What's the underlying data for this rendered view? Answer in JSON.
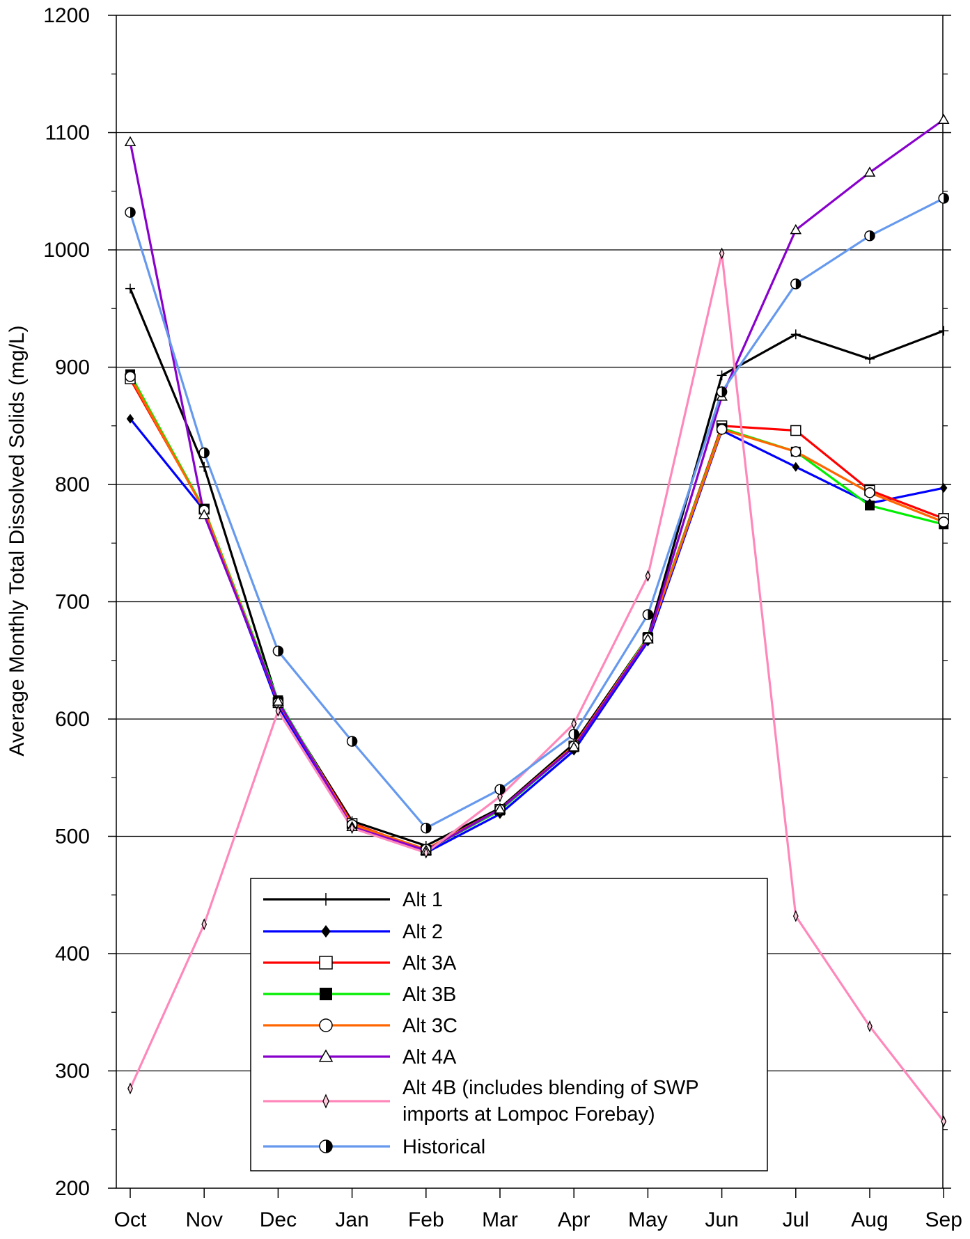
{
  "chart_data": {
    "type": "line",
    "title": "",
    "xlabel": "",
    "ylabel": "Average Monthly Total Dissolved Solids (mg/L)",
    "categories": [
      "Oct",
      "Nov",
      "Dec",
      "Jan",
      "Feb",
      "Mar",
      "Apr",
      "May",
      "Jun",
      "Jul",
      "Aug",
      "Sep"
    ],
    "ylim": [
      200,
      1200
    ],
    "yticks": [
      200,
      300,
      400,
      500,
      600,
      700,
      800,
      900,
      1000,
      1100,
      1200
    ],
    "grid": "horizontal major lines",
    "legend_position": "bottom-center",
    "series": [
      {
        "name": "Alt 1",
        "color": "#000000",
        "marker": "plus",
        "values": [
          967,
          815,
          614,
          513,
          492,
          524,
          579,
          670,
          893,
          928,
          907,
          931
        ]
      },
      {
        "name": "Alt 2",
        "color": "#0000ff",
        "marker": "filled-diamond",
        "values": [
          856,
          778,
          611,
          509,
          486,
          519,
          573,
          666,
          846,
          815,
          784,
          797
        ]
      },
      {
        "name": "Alt 3A",
        "color": "#ff0000",
        "marker": "open-square",
        "values": [
          890,
          779,
          614,
          511,
          488,
          523,
          577,
          669,
          850,
          846,
          795,
          771
        ]
      },
      {
        "name": "Alt 3B",
        "color": "#00ee00",
        "marker": "filled-square",
        "values": [
          894,
          779,
          616,
          509,
          488,
          522,
          576,
          670,
          848,
          828,
          782,
          766
        ]
      },
      {
        "name": "Alt 3C",
        "color": "#ff6600",
        "marker": "open-circle",
        "values": [
          892,
          778,
          614,
          510,
          489,
          523,
          577,
          669,
          847,
          828,
          793,
          768
        ]
      },
      {
        "name": "Alt 4A",
        "color": "#8800cc",
        "marker": "open-triangle",
        "values": [
          1092,
          774,
          615,
          508,
          488,
          523,
          576,
          668,
          875,
          1017,
          1066,
          1111
        ]
      },
      {
        "name": "Alt 4B (includes blending of SWP\n imports at Lompoc Forebay)",
        "color": "#ff88bb",
        "marker": "thin-diamond",
        "values": [
          285,
          425,
          607,
          507,
          486,
          534,
          596,
          722,
          997,
          432,
          338,
          257
        ]
      },
      {
        "name": "Historical",
        "color": "#6699ee",
        "marker": "half-circle",
        "values": [
          1032,
          827,
          658,
          581,
          507,
          540,
          587,
          689,
          879,
          971,
          1012,
          1044
        ]
      }
    ]
  }
}
